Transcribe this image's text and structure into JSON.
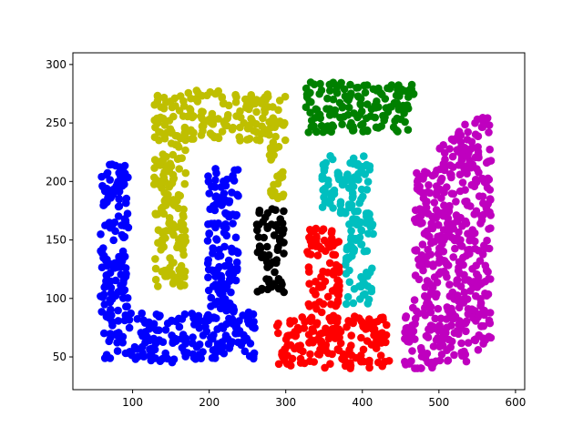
{
  "chart_data": {
    "type": "scatter",
    "title": "",
    "xlabel": "",
    "ylabel": "",
    "xlim": [
      22,
      612
    ],
    "ylim": [
      22,
      310
    ],
    "x_ticks": [
      100,
      200,
      300,
      400,
      500,
      600
    ],
    "y_ticks": [
      50,
      100,
      150,
      200,
      250,
      300
    ],
    "grid": false,
    "legend": "none",
    "series": [
      {
        "color": "#0000ff",
        "regions": [
          {
            "x": [
              58,
              77
            ],
            "y": [
              48,
              215
            ]
          },
          {
            "x": [
              77,
              95
            ],
            "y": [
              48,
              215
            ]
          },
          {
            "x": [
              95,
              122
            ],
            "y": [
              48,
              88
            ]
          },
          {
            "x": [
              122,
              148
            ],
            "y": [
              45,
              88
            ]
          },
          {
            "x": [
              148,
              170
            ],
            "y": [
              45,
              88
            ]
          },
          {
            "x": [
              170,
              193
            ],
            "y": [
              48,
              88
            ]
          },
          {
            "x": [
              193,
              213
            ],
            "y": [
              48,
              90
            ]
          },
          {
            "x": [
              213,
              232
            ],
            "y": [
              48,
              90
            ]
          },
          {
            "x": [
              232,
              260
            ],
            "y": [
              48,
              90
            ]
          },
          {
            "x": [
              198,
              217
            ],
            "y": [
              90,
              215
            ]
          },
          {
            "x": [
              217,
              238
            ],
            "y": [
              90,
              215
            ]
          }
        ]
      },
      {
        "color": "#bfbf00",
        "regions": [
          {
            "x": [
              128,
              150
            ],
            "y": [
              110,
              278
            ]
          },
          {
            "x": [
              150,
              170
            ],
            "y": [
              110,
              278
            ]
          },
          {
            "x": [
              170,
              220
            ],
            "y": [
              235,
              278
            ]
          },
          {
            "x": [
              220,
              262
            ],
            "y": [
              235,
              278
            ]
          },
          {
            "x": [
              262,
              300
            ],
            "y": [
              235,
              278
            ]
          },
          {
            "x": [
              278,
              298
            ],
            "y": [
              185,
              235
            ]
          }
        ]
      },
      {
        "color": "#008000",
        "regions": [
          {
            "x": [
              325,
              370
            ],
            "y": [
              242,
              285
            ]
          },
          {
            "x": [
              370,
              420
            ],
            "y": [
              242,
              285
            ]
          },
          {
            "x": [
              420,
              468
            ],
            "y": [
              242,
              285
            ]
          }
        ]
      },
      {
        "color": "#00bfbf",
        "regions": [
          {
            "x": [
              347,
              372
            ],
            "y": [
              168,
              222
            ]
          },
          {
            "x": [
              372,
              392
            ],
            "y": [
              168,
              222
            ]
          },
          {
            "x": [
              392,
              410
            ],
            "y": [
              168,
              222
            ]
          },
          {
            "x": [
              378,
              397
            ],
            "y": [
              95,
              168
            ]
          },
          {
            "x": [
              397,
              415
            ],
            "y": [
              95,
              168
            ]
          }
        ]
      },
      {
        "color": "#000000",
        "regions": [
          {
            "x": [
              262,
              280
            ],
            "y": [
              105,
              178
            ]
          },
          {
            "x": [
              280,
              298
            ],
            "y": [
              105,
              178
            ]
          }
        ]
      },
      {
        "color": "#ff0000",
        "regions": [
          {
            "x": [
              328,
              350
            ],
            "y": [
              85,
              160
            ]
          },
          {
            "x": [
              350,
              370
            ],
            "y": [
              85,
              160
            ]
          },
          {
            "x": [
              288,
              310
            ],
            "y": [
              40,
              85
            ]
          },
          {
            "x": [
              310,
              335
            ],
            "y": [
              40,
              85
            ]
          },
          {
            "x": [
              335,
              360
            ],
            "y": [
              40,
              85
            ]
          },
          {
            "x": [
              360,
              385
            ],
            "y": [
              40,
              85
            ]
          },
          {
            "x": [
              385,
              410
            ],
            "y": [
              40,
              85
            ]
          },
          {
            "x": [
              410,
              435
            ],
            "y": [
              40,
              85
            ]
          }
        ]
      },
      {
        "color": "#bf00bf",
        "regions": [
          {
            "x": [
              455,
              478
            ],
            "y": [
              40,
              100
            ]
          },
          {
            "x": [
              478,
              500
            ],
            "y": [
              40,
              110
            ]
          },
          {
            "x": [
              500,
              522
            ],
            "y": [
              45,
              160
            ]
          },
          {
            "x": [
              522,
              545
            ],
            "y": [
              45,
              250
            ]
          },
          {
            "x": [
              545,
              568
            ],
            "y": [
              55,
              255
            ]
          },
          {
            "x": [
              468,
              500
            ],
            "y": [
              110,
              210
            ]
          },
          {
            "x": [
              500,
              520
            ],
            "y": [
              160,
              240
            ]
          }
        ]
      }
    ]
  }
}
